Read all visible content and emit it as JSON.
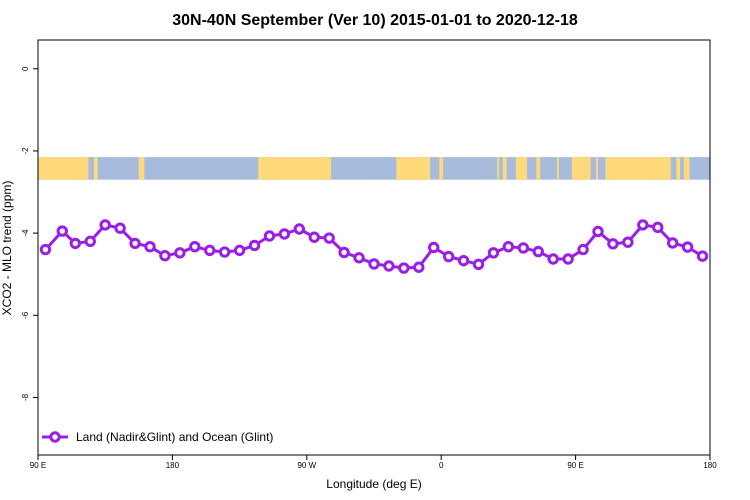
{
  "chart_data": {
    "type": "line",
    "title": "30N-40N September (Ver 10)   2015-01-01 to 2020-12-18",
    "xlabel": "Longitude (deg E)",
    "ylabel": "XCO2 - MLO trend (ppm)",
    "xlim": [
      90,
      450
    ],
    "ylim": [
      -9.4,
      0.7
    ],
    "x_ticks": [
      90,
      162,
      234,
      306,
      378,
      450
    ],
    "x_tick_labels": [
      "90 E",
      "180",
      "90 W",
      "0",
      "90 E",
      "180"
    ],
    "y_ticks": [
      0,
      -2,
      -4,
      -6,
      -8
    ],
    "y_tick_labels": [
      "0",
      "-2",
      "-4",
      "-6",
      "-8"
    ],
    "grid": false,
    "legend_position": "bottom-left",
    "colors": {
      "series": "#9a1ee6",
      "land": "#ffd97a",
      "ocean": "#a7bcdc"
    },
    "land_ocean_strip": {
      "y_top": -2.15,
      "y_bottom": -2.7,
      "land_segments": [
        [
          90,
          117
        ],
        [
          120,
          122
        ],
        [
          144,
          147
        ],
        [
          208,
          247
        ],
        [
          282,
          300
        ],
        [
          305,
          307
        ],
        [
          336,
          337
        ],
        [
          339,
          341
        ],
        [
          346,
          352
        ],
        [
          357,
          359
        ],
        [
          368,
          369
        ],
        [
          376,
          386
        ],
        [
          389,
          390
        ],
        [
          394,
          429
        ],
        [
          432,
          434
        ],
        [
          436,
          439
        ]
      ]
    },
    "series": [
      {
        "name": "Land (Nadir&Glint) and Ocean (Glint)",
        "x": [
          94,
          103,
          110,
          118,
          126,
          134,
          142,
          150,
          158,
          166,
          174,
          182,
          190,
          198,
          206,
          214,
          222,
          230,
          238,
          246,
          254,
          262,
          270,
          278,
          286,
          294,
          302,
          310,
          318,
          326,
          334,
          342,
          350,
          358,
          366,
          374,
          382,
          390,
          398,
          406,
          414,
          422,
          430,
          438,
          446
        ],
        "values": [
          -4.4,
          -3.95,
          -4.25,
          -4.2,
          -3.8,
          -3.88,
          -4.25,
          -4.33,
          -4.55,
          -4.48,
          -4.33,
          -4.42,
          -4.46,
          -4.42,
          -4.3,
          -4.07,
          -4.02,
          -3.9,
          -4.1,
          -4.12,
          -4.47,
          -4.6,
          -4.75,
          -4.8,
          -4.85,
          -4.83,
          -4.35,
          -4.57,
          -4.67,
          -4.76,
          -4.48,
          -4.33,
          -4.36,
          -4.45,
          -4.63,
          -4.63,
          -4.4,
          -3.96,
          -4.26,
          -4.22,
          -3.8,
          -3.86,
          -4.24,
          -4.34,
          -4.56
        ]
      }
    ]
  }
}
